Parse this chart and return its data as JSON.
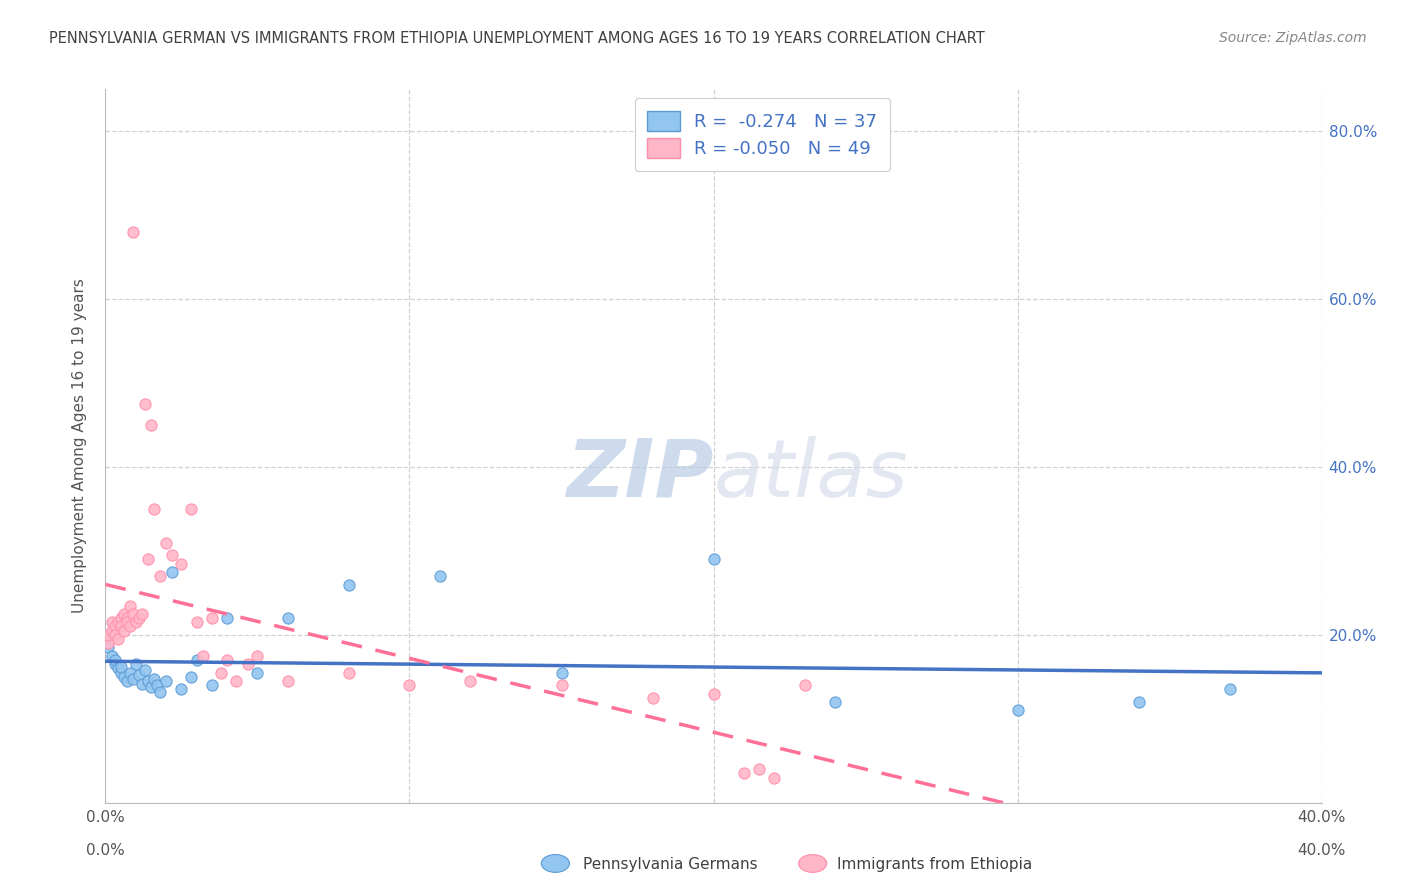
{
  "title": "PENNSYLVANIA GERMAN VS IMMIGRANTS FROM ETHIOPIA UNEMPLOYMENT AMONG AGES 16 TO 19 YEARS CORRELATION CHART",
  "source": "Source: ZipAtlas.com",
  "ylabel": "Unemployment Among Ages 16 to 19 years",
  "xmin": 0.0,
  "xmax": 0.4,
  "ymin": 0.0,
  "ymax": 0.85,
  "color_blue": "#92C5F0",
  "color_pink": "#FFB6C8",
  "edge_blue": "#5B9BD5",
  "edge_pink": "#FF8FAB",
  "line_blue": "#4472C4",
  "line_pink": "#FF7096",
  "bg_color": "#FFFFFF",
  "grid_color": "#CCCCCC",
  "watermark_color": "#C8D8E8",
  "pennsylvania_x": [
    0.001,
    0.002,
    0.003,
    0.003,
    0.004,
    0.005,
    0.005,
    0.006,
    0.007,
    0.008,
    0.009,
    0.01,
    0.011,
    0.012,
    0.013,
    0.014,
    0.015,
    0.016,
    0.017,
    0.018,
    0.02,
    0.022,
    0.025,
    0.028,
    0.03,
    0.035,
    0.04,
    0.05,
    0.06,
    0.08,
    0.11,
    0.15,
    0.2,
    0.24,
    0.3,
    0.34,
    0.37
  ],
  "pennsylvania_y": [
    0.185,
    0.175,
    0.165,
    0.17,
    0.16,
    0.155,
    0.162,
    0.15,
    0.145,
    0.155,
    0.148,
    0.165,
    0.152,
    0.142,
    0.158,
    0.145,
    0.138,
    0.148,
    0.14,
    0.132,
    0.145,
    0.275,
    0.135,
    0.15,
    0.17,
    0.14,
    0.22,
    0.155,
    0.22,
    0.26,
    0.27,
    0.155,
    0.29,
    0.12,
    0.11,
    0.12,
    0.135
  ],
  "ethiopia_x": [
    0.001,
    0.001,
    0.002,
    0.002,
    0.003,
    0.003,
    0.004,
    0.004,
    0.005,
    0.005,
    0.006,
    0.006,
    0.007,
    0.007,
    0.008,
    0.008,
    0.009,
    0.009,
    0.01,
    0.011,
    0.012,
    0.013,
    0.014,
    0.015,
    0.016,
    0.018,
    0.02,
    0.022,
    0.025,
    0.028,
    0.03,
    0.032,
    0.035,
    0.038,
    0.04,
    0.043,
    0.047,
    0.05,
    0.06,
    0.08,
    0.1,
    0.12,
    0.15,
    0.18,
    0.2,
    0.21,
    0.215,
    0.22,
    0.23
  ],
  "ethiopia_y": [
    0.19,
    0.2,
    0.215,
    0.205,
    0.21,
    0.2,
    0.215,
    0.195,
    0.22,
    0.21,
    0.225,
    0.205,
    0.22,
    0.215,
    0.235,
    0.21,
    0.225,
    0.68,
    0.215,
    0.22,
    0.225,
    0.475,
    0.29,
    0.45,
    0.35,
    0.27,
    0.31,
    0.295,
    0.285,
    0.35,
    0.215,
    0.175,
    0.22,
    0.155,
    0.17,
    0.145,
    0.165,
    0.175,
    0.145,
    0.155,
    0.14,
    0.145,
    0.14,
    0.125,
    0.13,
    0.035,
    0.04,
    0.03,
    0.14
  ]
}
